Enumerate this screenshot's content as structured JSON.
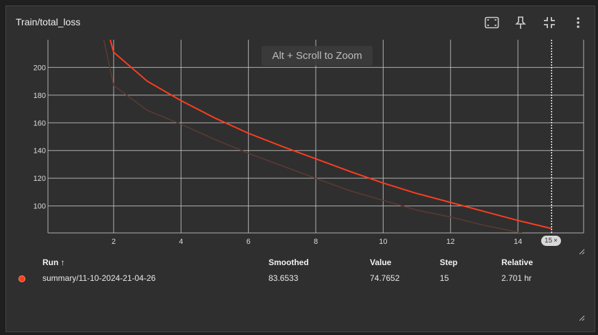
{
  "card": {
    "title": "Train/total_loss",
    "zoom_hint": "Alt + Scroll to Zoom",
    "step_marker": "15",
    "toolbar": [
      {
        "icon": "fit-to-data-icon"
      },
      {
        "icon": "pin-icon"
      },
      {
        "icon": "collapse-icon"
      },
      {
        "icon": "more-vert-icon"
      }
    ]
  },
  "colors": {
    "smoothed": "#ff3d1f",
    "raw": "#5b3a33",
    "grid": "#c8c8c8",
    "background": "#2f2f2f"
  },
  "chart_data": {
    "type": "line",
    "title": "",
    "xlabel": "",
    "ylabel": "",
    "xlim": [
      0.05,
      15.95
    ],
    "ylim": [
      80.5,
      220
    ],
    "x_ticks": [
      2,
      4,
      6,
      8,
      10,
      12,
      14
    ],
    "x_tick_labels": [
      "2",
      "4",
      "6",
      "8",
      "10",
      "12",
      "14"
    ],
    "y_ticks": [
      100,
      120,
      140,
      160,
      180,
      200
    ],
    "y_tick_labels": [
      "100",
      "120",
      "140",
      "160",
      "180",
      "200"
    ],
    "grid": true,
    "hover_step": 15,
    "series": [
      {
        "role": "raw",
        "x": [
          1,
          2,
          3,
          4,
          5,
          6,
          7,
          8,
          9,
          10,
          11,
          12,
          13,
          14,
          15
        ],
        "y": [
          300,
          187,
          169,
          159,
          148,
          138,
          129,
          120,
          111,
          104,
          97,
          92,
          86,
          81,
          74.7652
        ]
      },
      {
        "role": "smoothed",
        "x": [
          1,
          2,
          3,
          4,
          5,
          6,
          7,
          8,
          9,
          10,
          11,
          12,
          13,
          14,
          15
        ],
        "y": [
          300,
          211,
          190,
          176,
          163.5,
          152.5,
          143,
          134,
          125,
          116.5,
          109,
          102.5,
          96,
          89.5,
          83.6533
        ]
      }
    ]
  },
  "table": {
    "headers": {
      "run": "Run ↑",
      "smoothed": "Smoothed",
      "value": "Value",
      "step": "Step",
      "relative": "Relative"
    },
    "rows": [
      {
        "run": "summary/11-10-2024-21-04-26",
        "smoothed": "83.6533",
        "value": "74.7652",
        "step": "15",
        "relative": "2.701 hr"
      }
    ]
  }
}
